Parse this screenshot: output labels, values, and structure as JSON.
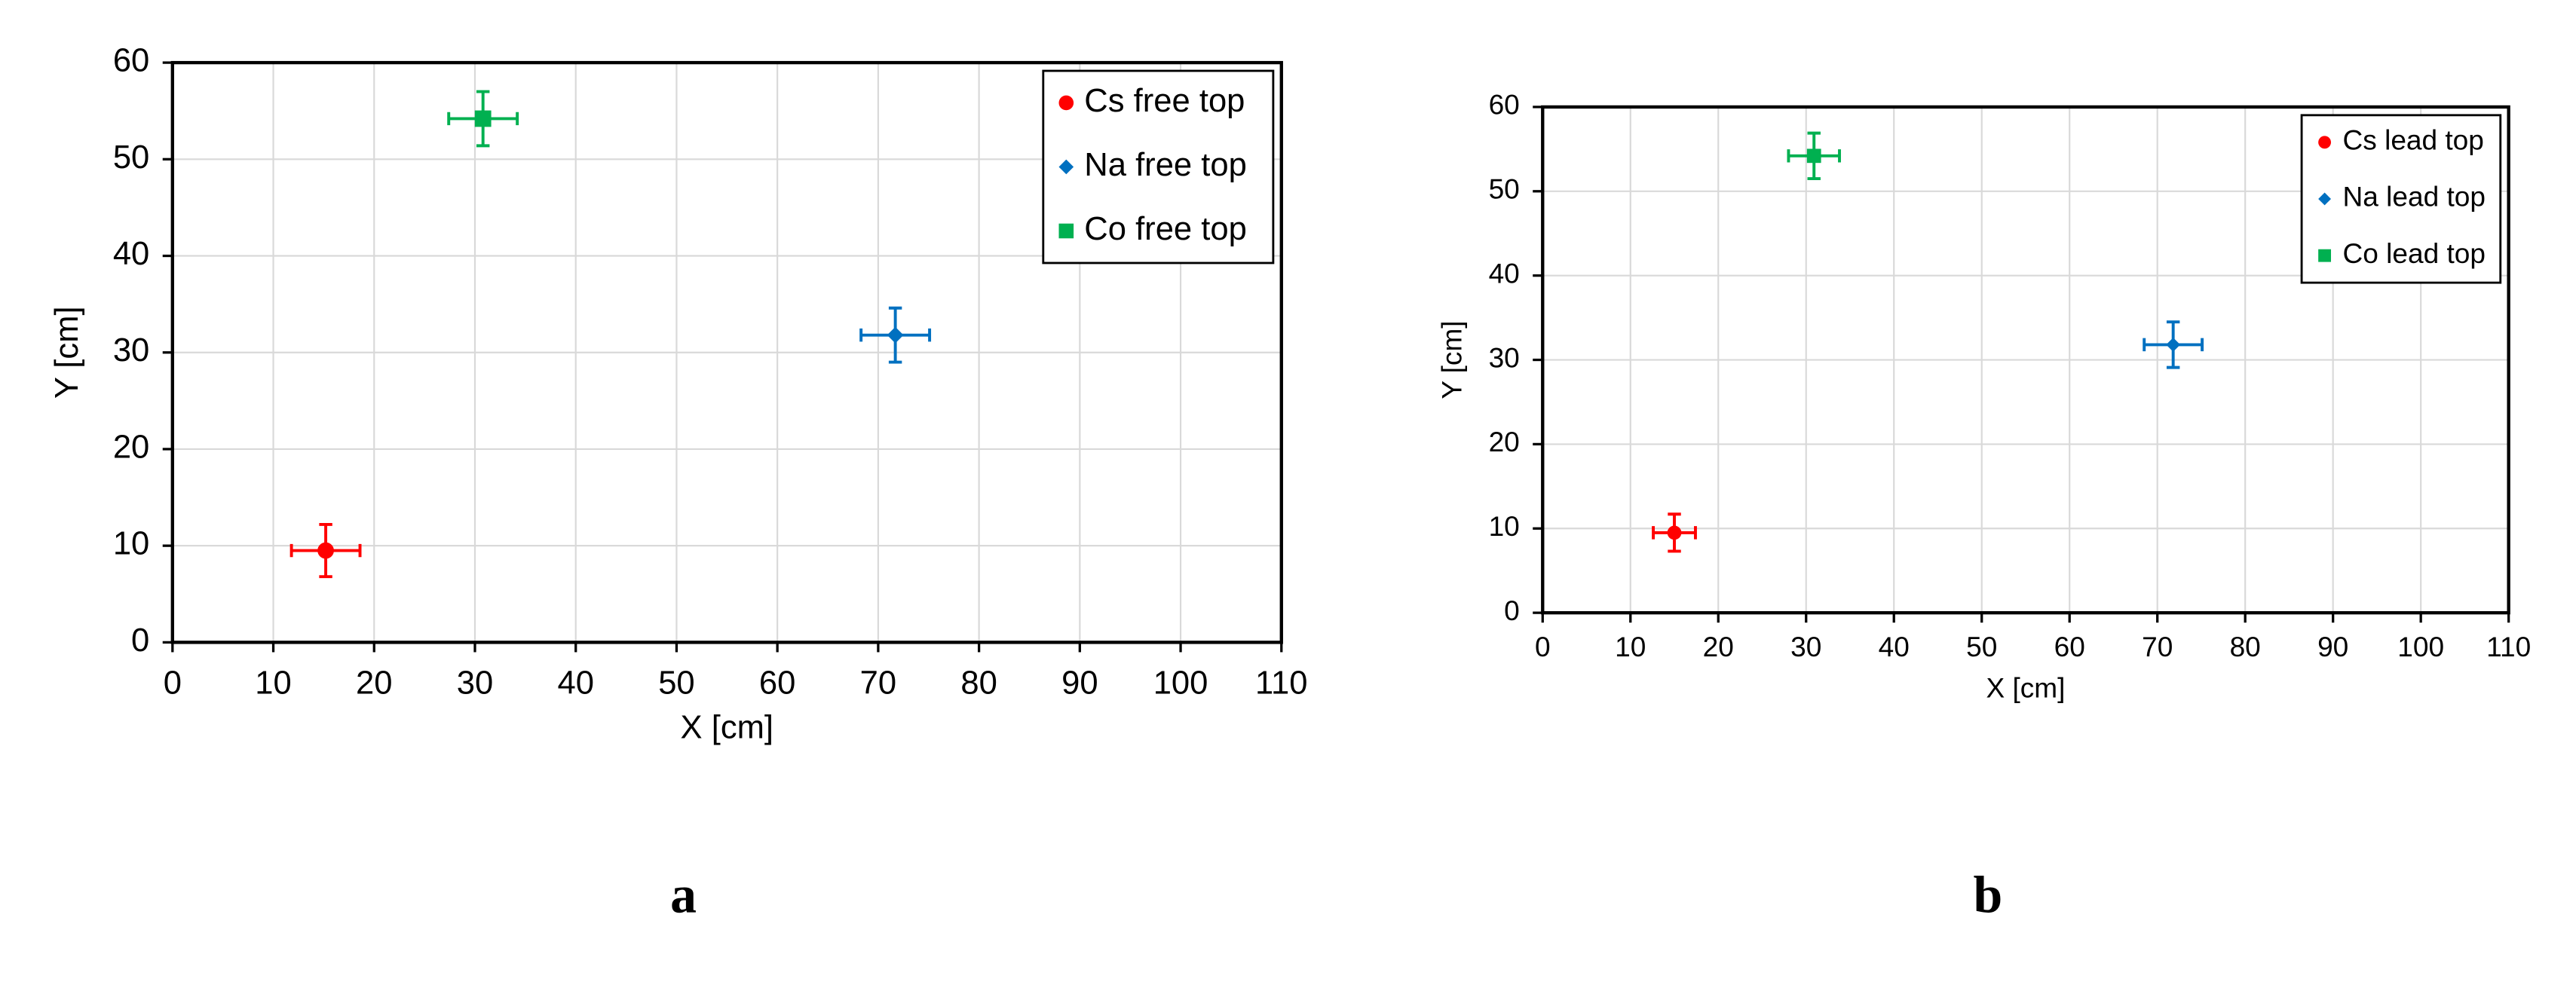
{
  "chart_data": [
    {
      "type": "scatter",
      "panel_label": "a",
      "xlabel": "X [cm]",
      "ylabel": "Y [cm]",
      "xlim": [
        0,
        110
      ],
      "xticks": [
        0,
        10,
        20,
        30,
        40,
        50,
        60,
        70,
        80,
        90,
        100,
        110
      ],
      "ylim": [
        0,
        60
      ],
      "yticks": [
        0,
        10,
        20,
        30,
        40,
        50,
        60
      ],
      "grid": true,
      "legend": "top-right",
      "series": [
        {
          "name": "Cs free top",
          "color": "#ff0000",
          "marker": "circle",
          "x": [
            15.2
          ],
          "y": [
            9.5
          ],
          "x_err": [
            3.4
          ],
          "y_err": [
            2.7
          ]
        },
        {
          "name": "Na free top",
          "color": "#0070c0",
          "marker": "diamond",
          "x": [
            71.7
          ],
          "y": [
            31.8
          ],
          "x_err": [
            3.4
          ],
          "y_err": [
            2.8
          ]
        },
        {
          "name": "Co free top",
          "color": "#00b050",
          "marker": "square",
          "x": [
            30.8
          ],
          "y": [
            54.2
          ],
          "x_err": [
            3.4
          ],
          "y_err": [
            2.8
          ]
        }
      ]
    },
    {
      "type": "scatter",
      "panel_label": "b",
      "xlabel": "X [cm]",
      "ylabel": "Y [cm]",
      "xlim": [
        0,
        110
      ],
      "xticks": [
        0,
        10,
        20,
        30,
        40,
        50,
        60,
        70,
        80,
        90,
        100,
        110
      ],
      "ylim": [
        0,
        60
      ],
      "yticks": [
        0,
        10,
        20,
        30,
        40,
        50,
        60
      ],
      "grid": true,
      "legend": "top-right",
      "series": [
        {
          "name": "Cs lead top",
          "color": "#ff0000",
          "marker": "circle",
          "x": [
            15.0
          ],
          "y": [
            9.5
          ],
          "x_err": [
            2.4
          ],
          "y_err": [
            2.2
          ]
        },
        {
          "name": "Na lead top",
          "color": "#0070c0",
          "marker": "diamond",
          "x": [
            71.8
          ],
          "y": [
            31.8
          ],
          "x_err": [
            3.3
          ],
          "y_err": [
            2.7
          ]
        },
        {
          "name": "Co lead top",
          "color": "#00b050",
          "marker": "square",
          "x": [
            30.9
          ],
          "y": [
            54.2
          ],
          "x_err": [
            2.9
          ],
          "y_err": [
            2.7
          ]
        }
      ]
    }
  ]
}
